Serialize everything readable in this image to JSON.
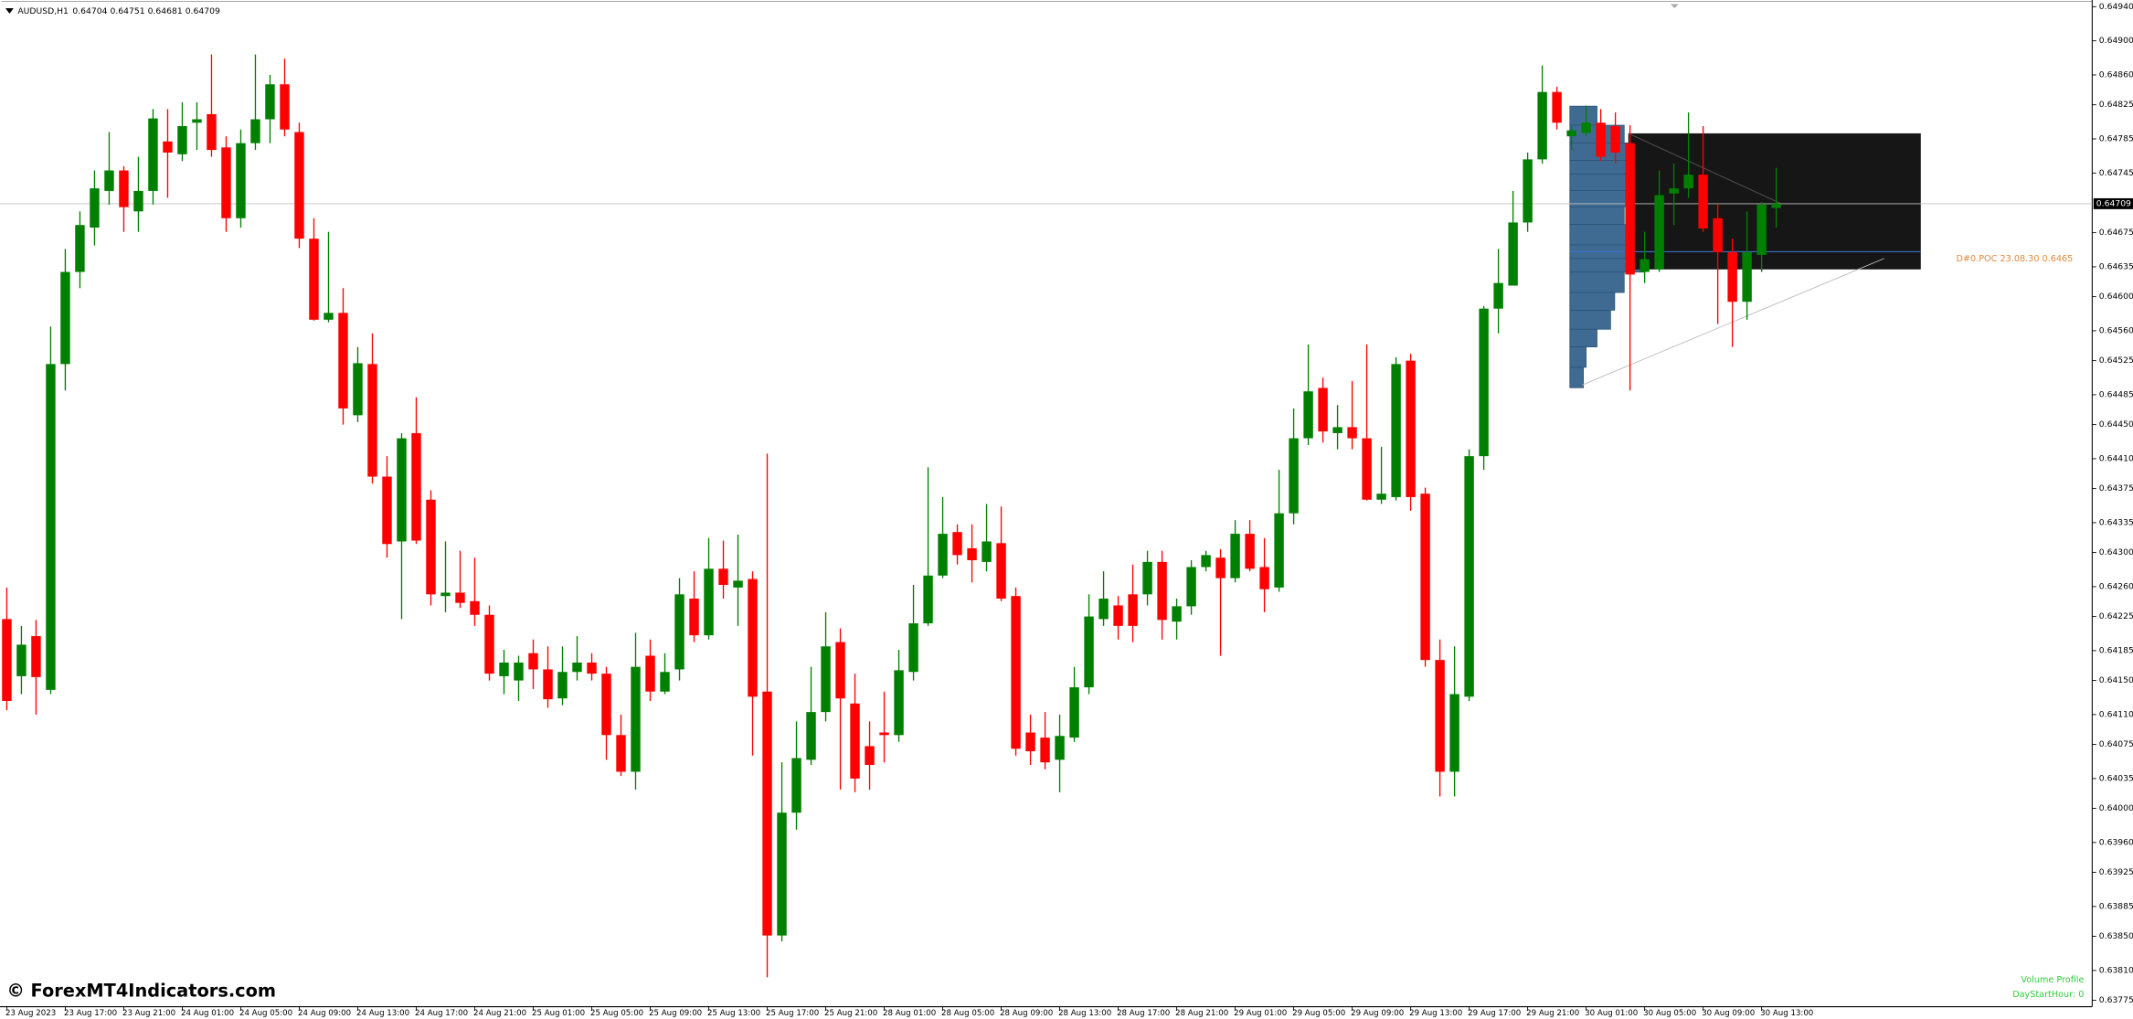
{
  "chart_data": {
    "type": "candlestick",
    "title": "AUDUSD,H1",
    "categories": [
      "23 Aug 2023",
      null,
      null,
      null,
      "23 Aug 17:00",
      null,
      null,
      null,
      "23 Aug 21:00",
      null,
      null,
      null,
      "24 Aug 01:00",
      null,
      null,
      null,
      "24 Aug 05:00",
      null,
      null,
      null,
      "24 Aug 09:00",
      null,
      null,
      null,
      "24 Aug 13:00",
      null,
      null,
      null,
      "24 Aug 17:00",
      null,
      null,
      null,
      "24 Aug 21:00",
      null,
      null,
      null,
      "25 Aug 01:00",
      null,
      null,
      null,
      "25 Aug 05:00",
      null,
      null,
      null,
      "25 Aug 09:00",
      null,
      null,
      null,
      "25 Aug 13:00",
      null,
      null,
      null,
      "25 Aug 17:00",
      null,
      null,
      null,
      "25 Aug 21:00",
      null,
      null,
      null,
      "28 Aug 01:00",
      null,
      null,
      null,
      "28 Aug 05:00",
      null,
      null,
      null,
      "28 Aug 09:00",
      null,
      null,
      null,
      "28 Aug 13:00",
      null,
      null,
      null,
      "28 Aug 17:00",
      null,
      null,
      null,
      "28 Aug 21:00",
      null,
      null,
      null,
      "29 Aug 01:00",
      null,
      null,
      null,
      "29 Aug 05:00",
      null,
      null,
      null,
      "29 Aug 09:00",
      null,
      null,
      null,
      "29 Aug 13:00",
      null,
      null,
      null,
      "29 Aug 17:00",
      null,
      null,
      null,
      "29 Aug 21:00",
      null,
      null,
      null,
      "30 Aug 01:00",
      null,
      null,
      null,
      "30 Aug 05:00",
      null,
      null,
      null,
      "30 Aug 09:00",
      null,
      null,
      null,
      "30 Aug 13:00",
      null
    ],
    "open": [
      0.64222,
      0.64155,
      0.64202,
      0.64139,
      0.64521,
      0.64629,
      0.64681,
      0.64724,
      0.64748,
      0.647,
      0.64724,
      0.64782,
      0.64767,
      0.64804,
      0.64814,
      0.64775,
      0.64692,
      0.6478,
      0.64808,
      0.64849,
      0.64793,
      0.64668,
      0.64573,
      0.64581,
      0.64461,
      0.64521,
      0.64389,
      0.64313,
      0.6444,
      0.64362,
      0.64249,
      0.64253,
      0.64243,
      0.64227,
      0.64155,
      0.6415,
      0.64182,
      0.64163,
      0.64129,
      0.6416,
      0.64171,
      0.64158,
      0.64086,
      0.64043,
      0.64179,
      0.64137,
      0.64163,
      0.64246,
      0.64203,
      0.64281,
      0.64259,
      0.64269,
      0.64137,
      0.63851,
      0.63995,
      0.64057,
      0.64113,
      0.64195,
      0.64123,
      0.64073,
      0.64089,
      0.64086,
      0.6416,
      0.64217,
      0.64273,
      0.64324,
      0.64305,
      0.64289,
      0.64311,
      0.64249,
      0.64089,
      0.64083,
      0.64057,
      0.64083,
      0.64142,
      0.64222,
      0.64238,
      0.64251,
      0.64251,
      0.64289,
      0.64219,
      0.64237,
      0.64283,
      0.64294,
      0.6427,
      0.64322,
      0.64283,
      0.64259,
      0.64346,
      0.64434,
      0.64493,
      0.6444,
      0.64447,
      0.64434,
      0.64362,
      0.64365,
      0.64525,
      0.64369,
      0.64174,
      0.64043,
      0.64131,
      0.64413,
      0.64586,
      0.64613,
      0.64687,
      0.64761,
      0.6484,
      0.64788,
      0.64792,
      0.64804,
      0.648,
      0.6478,
      0.64629,
      0.64632,
      0.64721,
      0.64727,
      0.64743,
      0.64692,
      0.64652,
      0.64594,
      0.64649,
      0.64704
    ],
    "high": [
      0.64259,
      0.64214,
      0.64221,
      0.64565,
      0.64656,
      0.647,
      0.64748,
      0.64793,
      0.64753,
      0.64764,
      0.6482,
      0.6482,
      0.64828,
      0.64828,
      0.64884,
      0.64788,
      0.64796,
      0.64884,
      0.6486,
      0.64879,
      0.64804,
      0.64692,
      0.64676,
      0.6461,
      0.64541,
      0.64557,
      0.64413,
      0.6444,
      0.64482,
      0.64373,
      0.64313,
      0.64302,
      0.64294,
      0.64238,
      0.64186,
      0.64179,
      0.64198,
      0.6419,
      0.6419,
      0.64202,
      0.64182,
      0.64166,
      0.6411,
      0.64206,
      0.64198,
      0.64182,
      0.6427,
      0.64278,
      0.64317,
      0.64314,
      0.64321,
      0.64278,
      0.64416,
      0.64054,
      0.64102,
      0.64166,
      0.6423,
      0.64211,
      0.64158,
      0.64102,
      0.64137,
      0.64186,
      0.64262,
      0.644,
      0.64365,
      0.64333,
      0.64333,
      0.64357,
      0.64354,
      0.64259,
      0.6411,
      0.64113,
      0.6411,
      0.64166,
      0.64251,
      0.64278,
      0.64249,
      0.64286,
      0.64302,
      0.64302,
      0.64246,
      0.64291,
      0.64302,
      0.64304,
      0.64338,
      0.64338,
      0.64317,
      0.64397,
      0.64469,
      0.64544,
      0.64505,
      0.64473,
      0.64501,
      0.64544,
      0.64424,
      0.64529,
      0.64533,
      0.64376,
      0.64198,
      0.6419,
      0.64421,
      0.64589,
      0.64656,
      0.64724,
      0.64769,
      0.64871,
      0.64846,
      0.648,
      0.64824,
      0.6482,
      0.64816,
      0.64801,
      0.64676,
      0.64748,
      0.64756,
      0.64816,
      0.648,
      0.64708,
      0.64668,
      0.647,
      0.64711,
      0.64751
    ],
    "low": [
      0.64115,
      0.64134,
      0.6411,
      0.64134,
      0.6449,
      0.6461,
      0.6466,
      0.64708,
      0.64676,
      0.64676,
      0.64708,
      0.64716,
      0.64759,
      0.64772,
      0.64764,
      0.64676,
      0.64681,
      0.64772,
      0.6478,
      0.64788,
      0.64657,
      0.64572,
      0.6457,
      0.6445,
      0.64453,
      0.64381,
      0.64294,
      0.64222,
      0.6431,
      0.64238,
      0.6423,
      0.64235,
      0.64214,
      0.6415,
      0.64134,
      0.64126,
      0.6414,
      0.64118,
      0.64121,
      0.6415,
      0.6415,
      0.64057,
      0.64038,
      0.64022,
      0.64126,
      0.64134,
      0.6415,
      0.64195,
      0.64198,
      0.64246,
      0.64214,
      0.64062,
      0.63802,
      0.63844,
      0.63975,
      0.64051,
      0.64102,
      0.64022,
      0.64019,
      0.64022,
      0.64054,
      0.64078,
      0.6415,
      0.64214,
      0.6427,
      0.64286,
      0.64265,
      0.64278,
      0.64243,
      0.64062,
      0.64051,
      0.64046,
      0.64019,
      0.64078,
      0.64134,
      0.64214,
      0.64198,
      0.64195,
      0.64238,
      0.64198,
      0.64198,
      0.64227,
      0.64278,
      0.64179,
      0.64265,
      0.64278,
      0.6423,
      0.64254,
      0.64333,
      0.64426,
      0.64429,
      0.64421,
      0.64421,
      0.64361,
      0.64357,
      0.64361,
      0.64349,
      0.64166,
      0.64014,
      0.64014,
      0.64126,
      0.64397,
      0.64557,
      0.64613,
      0.64676,
      0.64756,
      0.64796,
      0.64772,
      0.64788,
      0.64759,
      0.64756,
      0.6449,
      0.64616,
      0.64629,
      0.64684,
      0.64716,
      0.64676,
      0.64568,
      0.64541,
      0.64573,
      0.64629,
      0.64681
    ],
    "close": [
      0.64126,
      0.64192,
      0.64154,
      0.64521,
      0.64629,
      0.64684,
      0.64727,
      0.64748,
      0.64705,
      0.64724,
      0.64809,
      0.64769,
      0.648,
      0.64808,
      0.64772,
      0.64692,
      0.6478,
      0.64808,
      0.64849,
      0.64796,
      0.64668,
      0.64573,
      0.64581,
      0.64469,
      0.64522,
      0.64389,
      0.6431,
      0.64434,
      0.64314,
      0.64251,
      0.64253,
      0.64241,
      0.64227,
      0.64158,
      0.64171,
      0.64171,
      0.64163,
      0.64128,
      0.6416,
      0.64171,
      0.64158,
      0.64086,
      0.64043,
      0.64166,
      0.64137,
      0.6416,
      0.64251,
      0.64203,
      0.64281,
      0.64262,
      0.64267,
      0.64131,
      0.63851,
      0.63995,
      0.64059,
      0.64113,
      0.6419,
      0.64129,
      0.64035,
      0.64051,
      0.64086,
      0.64162,
      0.64217,
      0.64273,
      0.64322,
      0.64297,
      0.64291,
      0.64313,
      0.64246,
      0.6407,
      0.64067,
      0.64054,
      0.64085,
      0.64142,
      0.64225,
      0.64246,
      0.64214,
      0.64214,
      0.64289,
      0.64221,
      0.64237,
      0.64283,
      0.64297,
      0.6427,
      0.64322,
      0.64281,
      0.64257,
      0.64346,
      0.64434,
      0.64489,
      0.64442,
      0.64447,
      0.64434,
      0.64362,
      0.64369,
      0.64521,
      0.64365,
      0.64174,
      0.64043,
      0.64134,
      0.64413,
      0.64586,
      0.64616,
      0.64687,
      0.64761,
      0.6484,
      0.64804,
      0.64795,
      0.64804,
      0.64764,
      0.64769,
      0.64626,
      0.64644,
      0.64719,
      0.64727,
      0.64743,
      0.6468,
      0.64652,
      0.64594,
      0.64652,
      0.64708,
      0.64709
    ],
    "up_color": "#008000",
    "down_color": "#ff0000",
    "ylim": [
      0.637675,
      0.649478
    ],
    "yticks": [
      {
        "value": 0.6494,
        "label": "0.64940"
      },
      {
        "value": 0.649,
        "label": "0.64900"
      },
      {
        "value": 0.6486,
        "label": "0.64860"
      },
      0.64825,
      0.64785,
      0.64745,
      0.64675,
      0.64635,
      {
        "value": 0.646,
        "label": "0.64600"
      },
      {
        "value": 0.6456,
        "label": "0.64560"
      },
      0.64525,
      0.64485,
      {
        "value": 0.6445,
        "label": "0.64450"
      },
      {
        "value": 0.6441,
        "label": "0.64410"
      },
      0.64375,
      0.64335,
      {
        "value": 0.643,
        "label": "0.64300"
      },
      {
        "value": 0.6426,
        "label": "0.64260"
      },
      0.64225,
      0.64185,
      {
        "value": 0.6415,
        "label": "0.64150"
      },
      {
        "value": 0.6411,
        "label": "0.64110"
      },
      0.64075,
      0.64035,
      {
        "value": 0.64,
        "label": "0.64000"
      },
      {
        "value": 0.6396,
        "label": "0.63960"
      },
      0.63925,
      0.63885,
      {
        "value": 0.6385,
        "label": "0.63850"
      },
      {
        "value": 0.6381,
        "label": "0.63810"
      },
      0.63775
    ],
    "poc_label": "D#0.POC 23.08.30 0.6465",
    "indicator_name": "Volume Profile",
    "indicator_param": "DayStartHour: 0",
    "watermark": "© ForexMT4Indicators.com"
  }
}
